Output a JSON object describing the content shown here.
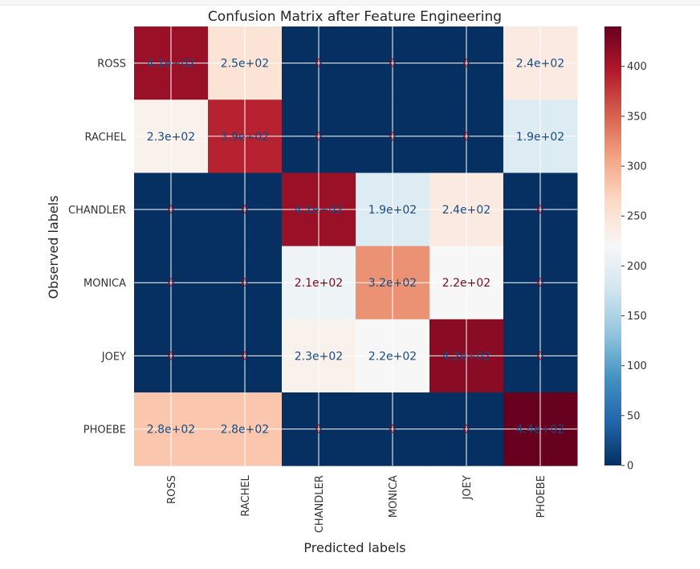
{
  "chart_data": {
    "type": "heatmap",
    "title": "Confusion Matrix after Feature Engineering",
    "xlabel": "Predicted labels",
    "ylabel": "Observed labels",
    "x_categories": [
      "ROSS",
      "RACHEL",
      "CHANDLER",
      "MONICA",
      "JOEY",
      "PHOEBE"
    ],
    "y_categories": [
      "ROSS",
      "RACHEL",
      "CHANDLER",
      "MONICA",
      "JOEY",
      "PHOEBE"
    ],
    "values": [
      [
        410,
        250,
        0,
        0,
        0,
        240
      ],
      [
        230,
        390,
        0,
        0,
        0,
        190
      ],
      [
        0,
        0,
        410,
        190,
        240,
        0
      ],
      [
        0,
        0,
        210,
        320,
        220,
        0
      ],
      [
        0,
        0,
        230,
        220,
        420,
        0
      ],
      [
        280,
        280,
        0,
        0,
        0,
        440
      ]
    ],
    "labels": [
      [
        "4.1e+02",
        "2.5e+02",
        "0",
        "0",
        "0",
        "2.4e+02"
      ],
      [
        "2.3e+02",
        "3.9e+02",
        "0",
        "0",
        "0",
        "1.9e+02"
      ],
      [
        "0",
        "0",
        "4.1e+02",
        "1.9e+02",
        "2.4e+02",
        "0"
      ],
      [
        "0",
        "0",
        "2.1e+02",
        "3.2e+02",
        "2.2e+02",
        "0"
      ],
      [
        "0",
        "0",
        "2.3e+02",
        "2.2e+02",
        "4.2e+02",
        "0"
      ],
      [
        "2.8e+02",
        "2.8e+02",
        "0",
        "0",
        "0",
        "4.4e+02"
      ]
    ],
    "colormap": "RdBu_r",
    "colorbar": {
      "range": [
        0,
        440
      ],
      "ticks": [
        0,
        50,
        100,
        150,
        200,
        250,
        300,
        350,
        400
      ],
      "tick_labels": [
        "0",
        "50",
        "100",
        "150",
        "200",
        "250",
        "300",
        "350",
        "400"
      ]
    },
    "grid": true,
    "x_tick_rotation": "vertical"
  },
  "colors": {
    "grid": "#ffffff",
    "text_on_light": "#1a4a80",
    "text_on_dark": "#7a0a1e",
    "axis_text": "#333333"
  }
}
